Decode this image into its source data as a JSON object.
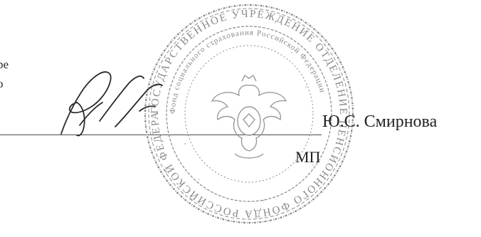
{
  "document": {
    "left_text_fragments": [
      "ре",
      "о"
    ],
    "signer_name": "Ю.С. Смирнова",
    "seal_mark": "МП"
  },
  "seal": {
    "icon": "round-seal-icon",
    "ink_color": "#7a7a7a",
    "outer_ring_text": "ГОСУДАРСТВЕННОЕ УЧРЕЖДЕНИЕ ОТДЕЛЕНИЕ ПЕНСИОННОГО ФОНДА РОССИЙСКОЙ ФЕДЕРАЦИИ",
    "inner_ring_text": "Фонд социального страхования Российской Федерации"
  },
  "signature": {
    "icon": "handwritten-signature-icon",
    "ink_color": "#2a2a2a"
  }
}
